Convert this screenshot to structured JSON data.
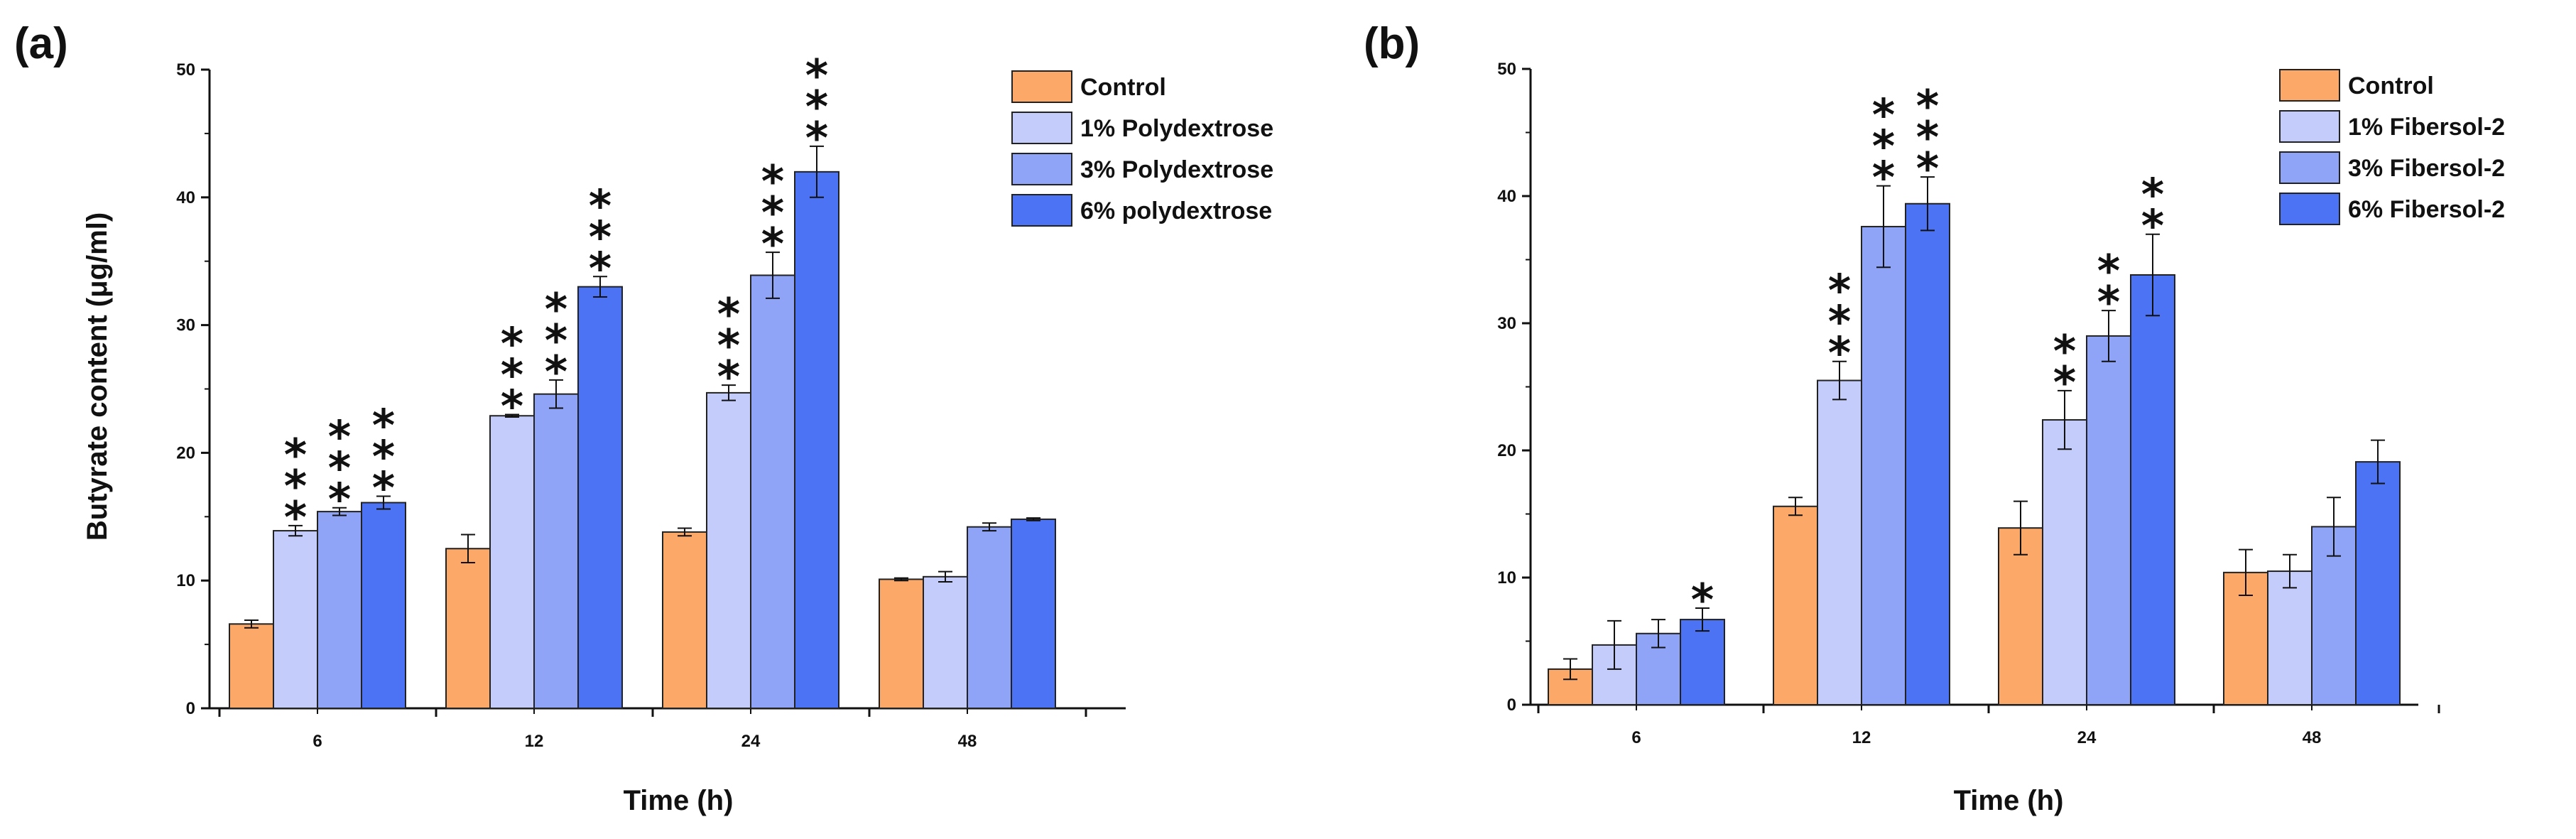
{
  "colors": [
    "#FBA868",
    "#C3CCFB",
    "#8FA4F7",
    "#4C73F4"
  ],
  "chart_data": [
    {
      "type": "bar",
      "panel_label": "(a)",
      "xlabel": "Time (h)",
      "ylabel": "Butyrate content (μg/ml)",
      "ylim": [
        0,
        50
      ],
      "yticks": [
        "0",
        "10",
        "20",
        "30",
        "40",
        "50"
      ],
      "categories": [
        "6",
        "12",
        "24",
        "48"
      ],
      "legend_position": "top-right",
      "grid": false,
      "series": [
        {
          "name": "Control",
          "values": [
            6.6,
            12.5,
            13.8,
            10.1
          ],
          "errors": [
            0.3,
            1.1,
            0.3,
            0.1
          ],
          "sig": [
            "",
            "",
            "",
            ""
          ]
        },
        {
          "name": "1% Polydextrose",
          "values": [
            13.9,
            22.9,
            24.7,
            10.3
          ],
          "errors": [
            0.4,
            0.1,
            0.6,
            0.4
          ],
          "sig": [
            "***",
            "***",
            "***",
            ""
          ]
        },
        {
          "name": "3% Polydextrose",
          "values": [
            15.4,
            24.6,
            33.9,
            14.2
          ],
          "errors": [
            0.3,
            1.1,
            1.8,
            0.3
          ],
          "sig": [
            "***",
            "***",
            "***",
            ""
          ]
        },
        {
          "name": "6% polydextrose",
          "values": [
            16.1,
            33.0,
            42.0,
            14.8
          ],
          "errors": [
            0.5,
            0.8,
            2.0,
            0.1
          ],
          "sig": [
            "***",
            "***",
            "***",
            ""
          ]
        }
      ]
    },
    {
      "type": "bar",
      "panel_label": "(b)",
      "xlabel": "Time (h)",
      "ylabel": "",
      "ylim": [
        0,
        50
      ],
      "yticks": [
        "0",
        "10",
        "20",
        "30",
        "40",
        "50"
      ],
      "categories": [
        "6",
        "12",
        "24",
        "48"
      ],
      "legend_position": "top-right",
      "grid": false,
      "series": [
        {
          "name": "Control",
          "values": [
            2.8,
            15.6,
            13.9,
            10.4
          ],
          "errors": [
            0.8,
            0.7,
            2.1,
            1.8
          ],
          "sig": [
            "",
            "",
            "",
            ""
          ]
        },
        {
          "name": "1% Fibersol-2",
          "values": [
            4.7,
            25.5,
            22.4,
            10.5
          ],
          "errors": [
            1.9,
            1.5,
            2.3,
            1.3
          ],
          "sig": [
            "",
            "***",
            "**",
            ""
          ]
        },
        {
          "name": "3% Fibersol-2",
          "values": [
            5.6,
            37.6,
            29.0,
            14.0
          ],
          "errors": [
            1.1,
            3.2,
            2.0,
            2.3
          ],
          "sig": [
            "",
            "***",
            "**",
            ""
          ]
        },
        {
          "name": "6% Fibersol-2",
          "values": [
            6.7,
            39.4,
            33.8,
            19.1
          ],
          "errors": [
            0.9,
            2.1,
            3.2,
            1.7
          ],
          "sig": [
            "*",
            "***",
            "**",
            ""
          ]
        }
      ]
    }
  ]
}
